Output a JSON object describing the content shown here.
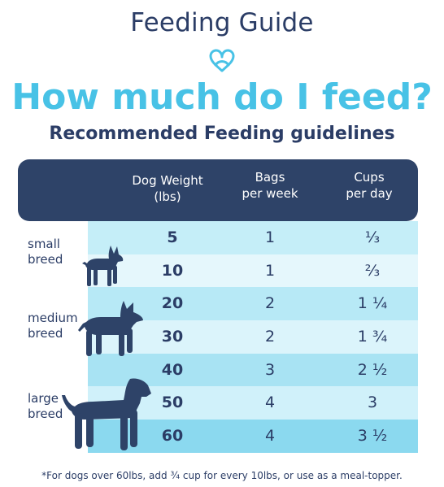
{
  "header": {
    "title": "Feeding Guide",
    "headline": "How much do I feed?",
    "subheadline": "Recommended Feeding guidelines"
  },
  "table": {
    "columns": [
      {
        "line1": "Dog Weight",
        "line2": "(lbs)"
      },
      {
        "line1": "Bags",
        "line2": "per week"
      },
      {
        "line1": "Cups",
        "line2": "per day"
      }
    ],
    "rows": [
      {
        "weight": "5",
        "bags": "1",
        "cups": "⅓",
        "bg": "#c5eef8"
      },
      {
        "weight": "10",
        "bags": "1",
        "cups": "⅔",
        "bg": "#e5f7fc"
      },
      {
        "weight": "20",
        "bags": "2",
        "cups": "1 ¼",
        "bg": "#b7e9f6"
      },
      {
        "weight": "30",
        "bags": "2",
        "cups": "1 ¾",
        "bg": "#dbf4fb"
      },
      {
        "weight": "40",
        "bags": "3",
        "cups": "2 ½",
        "bg": "#a8e3f3"
      },
      {
        "weight": "50",
        "bags": "4",
        "cups": "3",
        "bg": "#d0f1fa"
      },
      {
        "weight": "60",
        "bags": "4",
        "cups": "3 ½",
        "bg": "#8bd9ef"
      }
    ]
  },
  "breeds": {
    "small": {
      "line1": "small",
      "line2": "breed"
    },
    "medium": {
      "line1": "medium",
      "line2": "breed"
    },
    "large": {
      "line1": "large",
      "line2": "breed"
    }
  },
  "footnote": "*For dogs over 60lbs, add ¾ cup for every 10lbs, or use as a meal-topper.",
  "colors": {
    "navy": "#2e4368",
    "accent": "#48c2e6"
  },
  "icons": {
    "logo": "heart-knot-icon",
    "small_dog": "small-dog-icon",
    "medium_dog": "medium-dog-icon",
    "large_dog": "large-dog-icon"
  }
}
